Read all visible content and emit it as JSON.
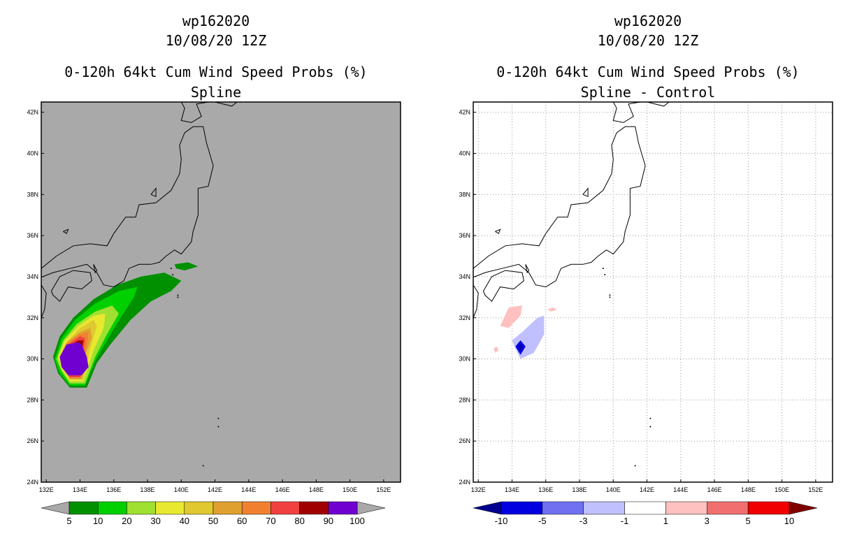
{
  "chart_data": [
    {
      "type": "contour-map",
      "title": [
        "wp162020",
        "10/08/20 12Z",
        "0-120h 64kt Cum Wind Speed Probs (%)",
        "Spline"
      ],
      "x_ticks": [
        "132E",
        "134E",
        "136E",
        "138E",
        "140E",
        "142E",
        "144E",
        "146E",
        "148E",
        "150E",
        "152E"
      ],
      "y_ticks": [
        "42N",
        "40N",
        "38N",
        "36N",
        "34N",
        "32N",
        "30N",
        "28N",
        "26N",
        "24N"
      ],
      "lon_range": [
        131.7,
        153.0
      ],
      "lat_range": [
        24.0,
        42.5
      ],
      "grid": false,
      "background": "#a9a9a9",
      "colorbar": {
        "labels": [
          "5",
          "10",
          "20",
          "30",
          "40",
          "50",
          "60",
          "70",
          "80",
          "90",
          "100"
        ],
        "colors": [
          "#009000",
          "#00d000",
          "#a0e030",
          "#e8e830",
          "#e0c830",
          "#e0a030",
          "#f08030",
          "#f04040",
          "#a00000",
          "#7000d0"
        ],
        "ends": [
          "#a9a9a9",
          "#a9a9a9"
        ]
      },
      "contours": [
        {
          "level": "5",
          "color": "#009000",
          "poly": [
            [
              133.4,
              28.6
            ],
            [
              132.7,
              29.3
            ],
            [
              132.4,
              30.1
            ],
            [
              132.8,
              31.1
            ],
            [
              133.6,
              32.0
            ],
            [
              134.8,
              32.9
            ],
            [
              136.2,
              33.6
            ],
            [
              137.6,
              34.0
            ],
            [
              139.0,
              34.2
            ],
            [
              140.0,
              33.8
            ],
            [
              139.4,
              33.3
            ],
            [
              138.2,
              32.8
            ],
            [
              137.0,
              31.9
            ],
            [
              135.8,
              30.7
            ],
            [
              135.0,
              29.8
            ],
            [
              134.4,
              28.6
            ]
          ]
        },
        {
          "level": "5",
          "color": "#009000",
          "poly": [
            [
              139.6,
              34.6
            ],
            [
              140.4,
              34.7
            ],
            [
              141.0,
              34.5
            ],
            [
              140.2,
              34.3
            ],
            [
              139.7,
              34.4
            ]
          ]
        },
        {
          "level": "10",
          "color": "#00d000",
          "poly": [
            [
              133.4,
              28.7
            ],
            [
              132.8,
              29.3
            ],
            [
              132.5,
              30.0
            ],
            [
              132.9,
              31.0
            ],
            [
              133.7,
              31.9
            ],
            [
              134.9,
              32.7
            ],
            [
              136.3,
              33.3
            ],
            [
              137.4,
              33.5
            ],
            [
              137.2,
              33.0
            ],
            [
              136.4,
              32.0
            ],
            [
              135.6,
              30.9
            ],
            [
              134.9,
              29.9
            ],
            [
              134.3,
              28.7
            ]
          ]
        },
        {
          "level": "20",
          "color": "#a0e030",
          "poly": [
            [
              133.4,
              28.8
            ],
            [
              132.9,
              29.4
            ],
            [
              132.6,
              30.0
            ],
            [
              133.0,
              30.9
            ],
            [
              133.8,
              31.7
            ],
            [
              134.9,
              32.3
            ],
            [
              135.9,
              32.6
            ],
            [
              136.3,
              32.2
            ],
            [
              135.6,
              31.2
            ],
            [
              134.9,
              30.1
            ],
            [
              134.3,
              28.8
            ]
          ]
        },
        {
          "level": "30",
          "color": "#e8e830",
          "poly": [
            [
              133.4,
              28.9
            ],
            [
              132.9,
              29.5
            ],
            [
              132.7,
              30.1
            ],
            [
              133.1,
              30.9
            ],
            [
              133.9,
              31.6
            ],
            [
              134.8,
              32.1
            ],
            [
              135.5,
              32.2
            ],
            [
              135.4,
              31.5
            ],
            [
              134.8,
              30.4
            ],
            [
              134.2,
              28.9
            ]
          ]
        },
        {
          "level": "40",
          "color": "#e0c830",
          "poly": [
            [
              133.4,
              29.0
            ],
            [
              133.0,
              29.5
            ],
            [
              132.8,
              30.1
            ],
            [
              133.2,
              30.8
            ],
            [
              134.0,
              31.5
            ],
            [
              134.8,
              31.9
            ],
            [
              135.0,
              31.6
            ],
            [
              134.6,
              30.5
            ],
            [
              134.2,
              29.0
            ]
          ]
        },
        {
          "level": "50",
          "color": "#e0a030",
          "poly": [
            [
              133.4,
              29.0
            ],
            [
              133.0,
              29.6
            ],
            [
              132.8,
              30.1
            ],
            [
              133.2,
              30.8
            ],
            [
              134.0,
              31.3
            ],
            [
              134.6,
              31.5
            ],
            [
              134.7,
              31.0
            ],
            [
              134.3,
              30.2
            ],
            [
              134.1,
              29.0
            ]
          ]
        },
        {
          "level": "60",
          "color": "#f08030",
          "poly": [
            [
              133.4,
              29.1
            ],
            [
              133.0,
              29.6
            ],
            [
              132.9,
              30.1
            ],
            [
              133.3,
              30.8
            ],
            [
              134.0,
              31.2
            ],
            [
              134.5,
              31.3
            ],
            [
              134.4,
              30.6
            ],
            [
              134.1,
              29.1
            ]
          ]
        },
        {
          "level": "70",
          "color": "#f04040",
          "poly": [
            [
              133.4,
              29.1
            ],
            [
              133.0,
              29.6
            ],
            [
              132.9,
              30.1
            ],
            [
              133.3,
              30.7
            ],
            [
              134.0,
              31.1
            ],
            [
              134.3,
              31.0
            ],
            [
              134.2,
              30.4
            ],
            [
              134.0,
              29.1
            ]
          ]
        },
        {
          "level": "80",
          "color": "#a00000",
          "poly": [
            [
              133.4,
              29.2
            ],
            [
              133.0,
              29.7
            ],
            [
              132.9,
              30.1
            ],
            [
              133.3,
              30.6
            ],
            [
              133.9,
              30.9
            ],
            [
              134.2,
              30.9
            ],
            [
              134.1,
              30.3
            ],
            [
              133.9,
              29.2
            ]
          ]
        },
        {
          "level": "90",
          "color": "#7000d0",
          "poly": [
            [
              133.3,
              29.2
            ],
            [
              132.9,
              29.6
            ],
            [
              132.8,
              30.1
            ],
            [
              133.2,
              30.7
            ],
            [
              133.9,
              30.8
            ],
            [
              134.1,
              30.7
            ],
            [
              134.4,
              30.1
            ],
            [
              134.5,
              29.6
            ],
            [
              134.1,
              29.2
            ]
          ]
        }
      ]
    },
    {
      "type": "contour-map",
      "title": [
        "wp162020",
        "10/08/20 12Z",
        "0-120h 64kt Cum Wind Speed Probs (%)",
        "Spline - Control"
      ],
      "x_ticks": [
        "132E",
        "134E",
        "136E",
        "138E",
        "140E",
        "142E",
        "144E",
        "146E",
        "148E",
        "150E",
        "152E"
      ],
      "y_ticks": [
        "42N",
        "40N",
        "38N",
        "36N",
        "34N",
        "32N",
        "30N",
        "28N",
        "26N",
        "24N"
      ],
      "lon_range": [
        131.7,
        153.0
      ],
      "lat_range": [
        24.0,
        42.5
      ],
      "grid": true,
      "background": "#ffffff",
      "colorbar": {
        "labels": [
          "-10",
          "-5",
          "-3",
          "-1",
          "1",
          "3",
          "5",
          "10"
        ],
        "colors": [
          "#0000e0",
          "#7070f0",
          "#c0c0ff",
          "#ffffff",
          "#ffc0c0",
          "#f07070",
          "#f00000"
        ],
        "ends": [
          "#000090",
          "#800000"
        ]
      },
      "contours": [
        {
          "level": "1",
          "color": "#ffc0c0",
          "poly": [
            [
              133.3,
              31.6
            ],
            [
              133.8,
              32.5
            ],
            [
              134.6,
              32.6
            ],
            [
              134.5,
              32.1
            ],
            [
              133.8,
              31.5
            ]
          ]
        },
        {
          "level": "1",
          "color": "#ffc0c0",
          "poly": [
            [
              132.9,
              30.5
            ],
            [
              133.1,
              30.6
            ],
            [
              133.2,
              30.4
            ],
            [
              133.0,
              30.3
            ]
          ]
        },
        {
          "level": "1",
          "color": "#ffc0c0",
          "poly": [
            [
              136.1,
              32.4
            ],
            [
              136.4,
              32.5
            ],
            [
              136.7,
              32.4
            ],
            [
              136.3,
              32.3
            ]
          ]
        },
        {
          "level": "-1",
          "color": "#c0c0ff",
          "poly": [
            [
              134.2,
              30.5
            ],
            [
              134.5,
              30.0
            ],
            [
              135.3,
              30.3
            ],
            [
              135.9,
              31.2
            ],
            [
              135.9,
              32.1
            ],
            [
              135.5,
              32.0
            ],
            [
              134.6,
              31.3
            ],
            [
              134.0,
              30.9
            ]
          ]
        },
        {
          "level": "-5",
          "color": "#0000e0",
          "poly": [
            [
              134.5,
              30.2
            ],
            [
              134.8,
              30.6
            ],
            [
              134.5,
              30.9
            ],
            [
              134.2,
              30.6
            ]
          ]
        },
        {
          "level": "-10",
          "color": "#000090",
          "poly": [
            [
              134.5,
              30.4
            ],
            [
              134.6,
              30.6
            ],
            [
              134.5,
              30.7
            ],
            [
              134.4,
              30.6
            ]
          ]
        }
      ]
    }
  ]
}
